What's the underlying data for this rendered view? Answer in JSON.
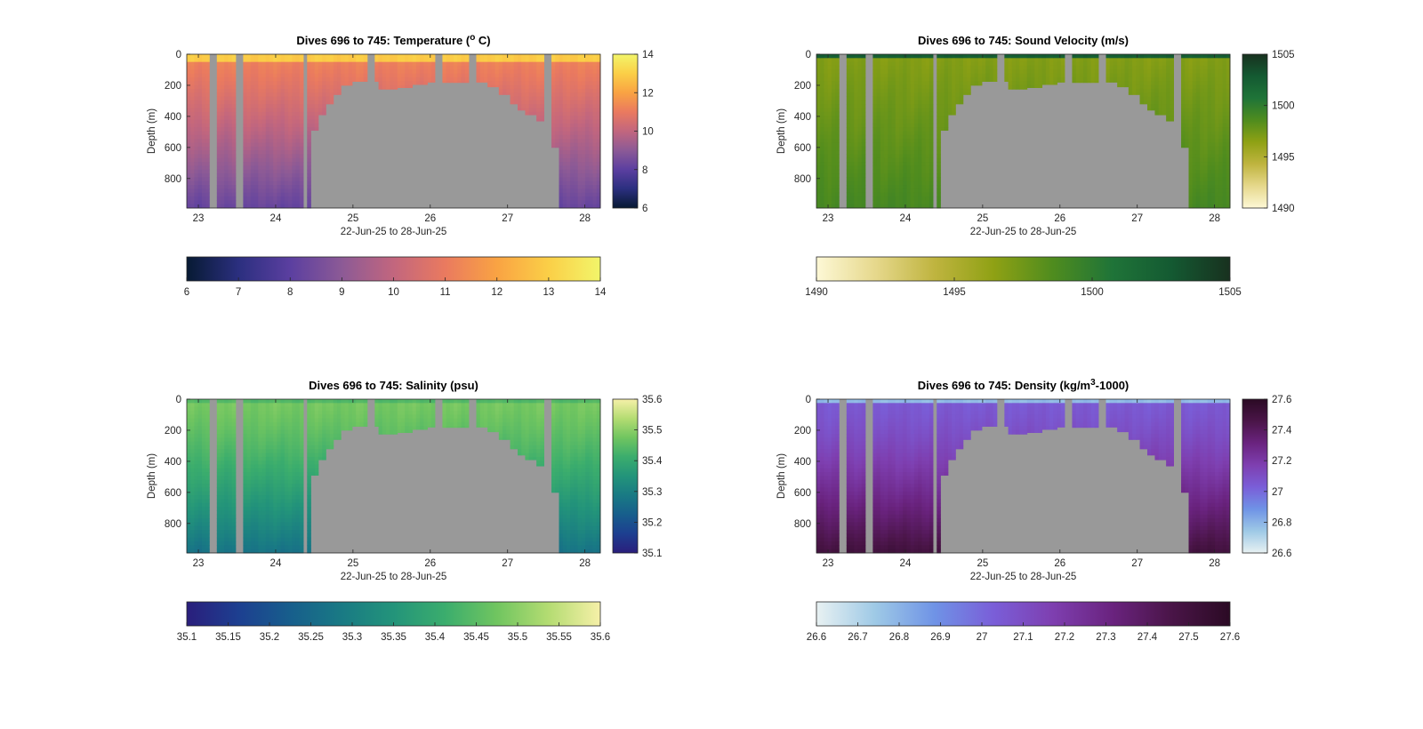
{
  "figure": {
    "background": "#ffffff",
    "mask_color": "#999999"
  },
  "chart_data": [
    {
      "id": "temperature",
      "type": "heatmap",
      "title_prefix": "Dives 696 to 745: Temperature (",
      "title_sup": "o",
      "title_suffix": " C)",
      "xlabel": "22-Jun-25 to 28-Jun-25",
      "ylabel": "Depth (m)",
      "xlim": [
        22.85,
        28.2
      ],
      "xticks": [
        23,
        24,
        25,
        26,
        27,
        28
      ],
      "ylim": [
        0,
        990
      ],
      "yticks": [
        0,
        200,
        400,
        600,
        800
      ],
      "clim": [
        6,
        14
      ],
      "colorbar_ticks": [
        6,
        8,
        10,
        12,
        14
      ],
      "horizontal_colorbar_ticks": [
        6,
        7,
        8,
        9,
        10,
        11,
        12,
        13,
        14
      ],
      "colormap": [
        "#071a33",
        "#2b2f7f",
        "#5b3fa0",
        "#8c5a96",
        "#c2667e",
        "#ea7a5f",
        "#f9a343",
        "#fbcf47",
        "#f2f56a"
      ],
      "profile": {
        "surface": 12.9,
        "mixed_depth": 40,
        "thermo_value": 11.2,
        "deep_value": 8.2,
        "exponent": 1.1
      }
    },
    {
      "id": "sound_velocity",
      "type": "heatmap",
      "title_prefix": "Dives 696 to 745: Sound Velocity (m/s)",
      "title_sup": "",
      "title_suffix": "",
      "xlabel": "22-Jun-25 to 28-Jun-25",
      "ylabel": "Depth (m)",
      "xlim": [
        22.85,
        28.2
      ],
      "xticks": [
        23,
        24,
        25,
        26,
        27,
        28
      ],
      "ylim": [
        0,
        990
      ],
      "yticks": [
        0,
        200,
        400,
        600,
        800
      ],
      "clim": [
        1490,
        1505
      ],
      "colorbar_ticks": [
        1490,
        1495,
        1500,
        1505
      ],
      "horizontal_colorbar_ticks": [
        1490,
        1495,
        1500,
        1505
      ],
      "colormap": [
        "#fdf8d6",
        "#e6d88c",
        "#bfb43f",
        "#8fa114",
        "#4f8c1e",
        "#1f7438",
        "#145a32",
        "#18311f"
      ],
      "profile": {
        "surface": 1502.5,
        "mixed_depth": 30,
        "thermo_value": 1496.8,
        "deep_value": 1499.0,
        "exponent": 1.0
      }
    },
    {
      "id": "salinity",
      "type": "heatmap",
      "title_prefix": "Dives 696 to 745: Salinity (psu)",
      "title_sup": "",
      "title_suffix": "",
      "xlabel": "22-Jun-25 to 28-Jun-25",
      "ylabel": "Depth (m)",
      "xlim": [
        22.85,
        28.2
      ],
      "xticks": [
        23,
        24,
        25,
        26,
        27,
        28
      ],
      "ylim": [
        0,
        990
      ],
      "yticks": [
        0,
        200,
        400,
        600,
        800
      ],
      "clim": [
        35.1,
        35.6
      ],
      "colorbar_ticks": [
        35.1,
        35.2,
        35.3,
        35.4,
        35.5,
        35.6
      ],
      "horizontal_colorbar_ticks": [
        35.1,
        35.15,
        35.2,
        35.25,
        35.3,
        35.35,
        35.4,
        35.45,
        35.5,
        35.55,
        35.6
      ],
      "horizontal_colorbar_labels": [
        "35.1",
        "35.15",
        "35.2",
        "35.25",
        "35.3",
        "35.35",
        "35.4",
        "35.45",
        "35.5",
        "35.55",
        "35.6"
      ],
      "colormap": [
        "#2a1e7c",
        "#1d3f90",
        "#175e8c",
        "#197a84",
        "#23947a",
        "#3bad6d",
        "#70c560",
        "#b4dc72",
        "#f6f0a8"
      ],
      "profile": {
        "surface": 35.44,
        "mixed_depth": 30,
        "thermo_value": 35.48,
        "deep_value": 35.27,
        "exponent": 1.3
      }
    },
    {
      "id": "density",
      "type": "heatmap",
      "title_prefix": "Dives 696 to 745: Density (kg/m",
      "title_sup": "3",
      "title_suffix": "-1000)",
      "xlabel": "22-Jun-25 to 28-Jun-25",
      "ylabel": "Depth (m)",
      "xlim": [
        22.85,
        28.2
      ],
      "xticks": [
        23,
        24,
        25,
        26,
        27,
        28
      ],
      "ylim": [
        0,
        990
      ],
      "yticks": [
        0,
        200,
        400,
        600,
        800
      ],
      "clim": [
        26.6,
        27.6
      ],
      "colorbar_ticks": [
        26.6,
        26.8,
        27,
        27.2,
        27.4,
        27.6
      ],
      "horizontal_colorbar_ticks": [
        26.6,
        26.7,
        26.8,
        26.9,
        27,
        27.1,
        27.2,
        27.3,
        27.4,
        27.5,
        27.6
      ],
      "horizontal_colorbar_labels": [
        "26.6",
        "26.7",
        "26.8",
        "26.9",
        "27",
        "27.1",
        "27.2",
        "27.3",
        "27.4",
        "27.5",
        "27.6"
      ],
      "colormap": [
        "#e8f1f2",
        "#9ec9e6",
        "#6f93e6",
        "#7a5ed8",
        "#7e3fb0",
        "#6a237f",
        "#4a1548",
        "#2b0a24"
      ],
      "profile": {
        "surface": 26.78,
        "mixed_depth": 25,
        "thermo_value": 27.05,
        "deep_value": 27.5,
        "exponent": 1.4
      }
    }
  ],
  "section": {
    "gaps": [
      [
        23.15,
        23.25
      ],
      [
        23.48,
        23.58
      ],
      [
        24.35,
        24.4
      ],
      [
        25.2,
        25.3
      ],
      [
        26.08,
        26.16
      ],
      [
        26.5,
        26.58
      ],
      [
        27.48,
        27.58
      ]
    ],
    "missing_upper": [
      [
        24.35,
        24.4
      ]
    ],
    "seafloor": [
      [
        24.4,
        1000
      ],
      [
        24.45,
        490
      ],
      [
        24.55,
        390
      ],
      [
        24.65,
        320
      ],
      [
        24.75,
        260
      ],
      [
        24.85,
        200
      ],
      [
        25.0,
        175
      ],
      [
        25.3,
        175
      ],
      [
        25.35,
        225
      ],
      [
        25.55,
        215
      ],
      [
        25.75,
        195
      ],
      [
        25.95,
        180
      ],
      [
        26.08,
        178
      ],
      [
        26.16,
        182
      ],
      [
        26.5,
        185
      ],
      [
        26.58,
        180
      ],
      [
        26.75,
        210
      ],
      [
        26.9,
        260
      ],
      [
        27.05,
        320
      ],
      [
        27.15,
        360
      ],
      [
        27.25,
        390
      ],
      [
        27.35,
        430
      ],
      [
        27.48,
        1000
      ],
      [
        27.58,
        600
      ],
      [
        27.68,
        1000
      ]
    ]
  }
}
